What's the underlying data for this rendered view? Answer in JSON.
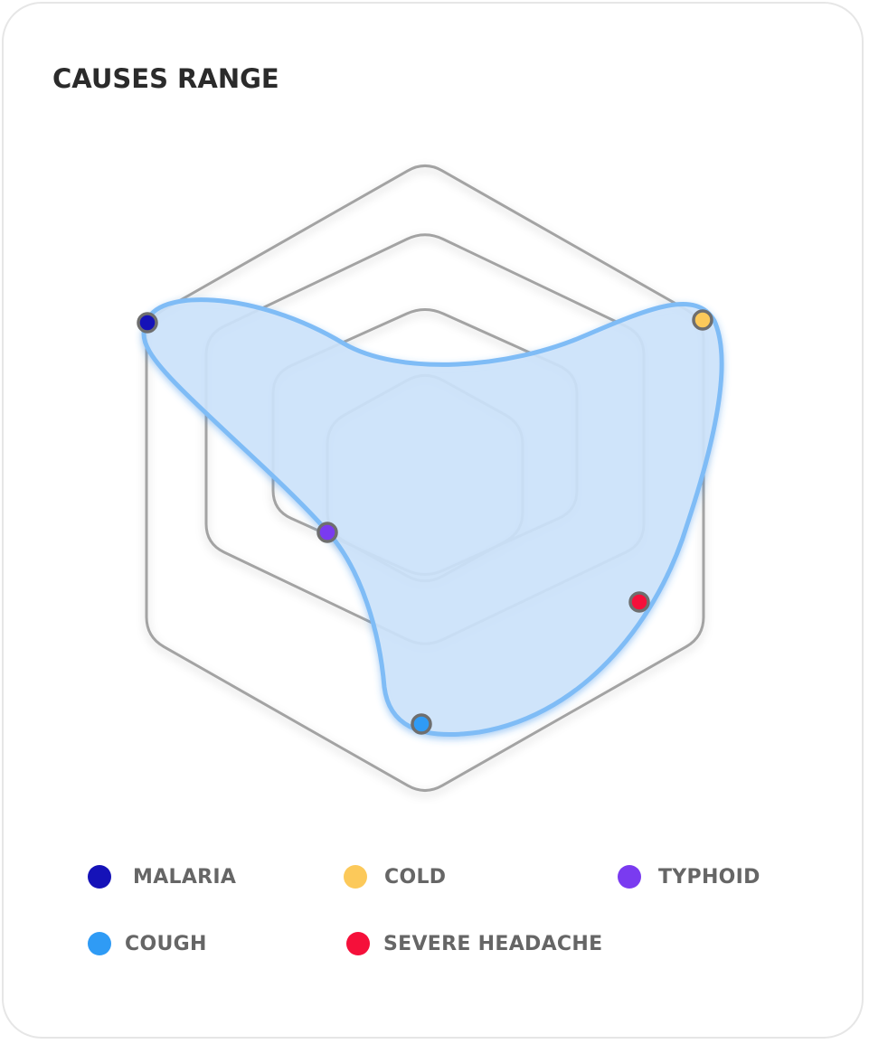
{
  "title": "CAUSES RANGE",
  "chart_data": {
    "type": "radar",
    "title": "CAUSES RANGE",
    "categories": [
      "MALARIA",
      "COLD",
      "TYPHOID",
      "COUGH",
      "SEVERE HEADACHE"
    ],
    "series": [
      {
        "points": [
          {
            "label": "MALARIA",
            "color": "#1512b8"
          },
          {
            "label": "COLD",
            "color": "#fcc95a"
          },
          {
            "label": "TYPHOID",
            "color": "#7a3bf0"
          },
          {
            "label": "COUGH",
            "color": "#2f9bf5"
          },
          {
            "label": "SEVERE HEADACHE",
            "color": "#f5103a"
          }
        ]
      }
    ],
    "fill_color": "#cfe5fb",
    "stroke_color": "#7fbcf6",
    "grid_color": "#a3a3a3",
    "grid": true,
    "legend_position": "bottom"
  },
  "legend": [
    {
      "label": "MALARIA",
      "color": "#1512b8"
    },
    {
      "label": "COLD",
      "color": "#fcc95a"
    },
    {
      "label": "TYPHOID",
      "color": "#7a3bf0"
    },
    {
      "label": "COUGH",
      "color": "#2f9bf5"
    },
    {
      "label": "SEVERE HEADACHE",
      "color": "#f5103a"
    }
  ]
}
